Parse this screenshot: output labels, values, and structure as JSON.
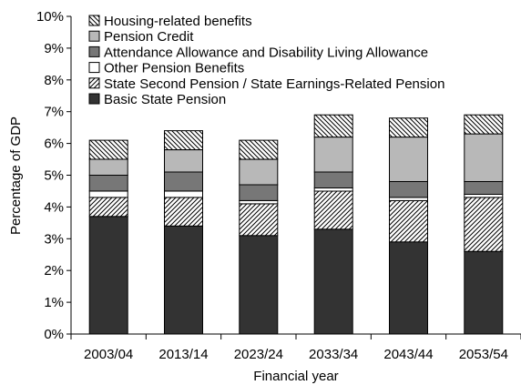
{
  "chart_data": {
    "type": "bar",
    "stacked": true,
    "xlabel": "Financial year",
    "ylabel": "Percentage of GDP",
    "ylim": [
      0,
      10
    ],
    "y_ticks": [
      "0%",
      "1%",
      "2%",
      "3%",
      "4%",
      "5%",
      "6%",
      "7%",
      "8%",
      "9%",
      "10%"
    ],
    "grid": false,
    "legend_position": "top-left",
    "categories": [
      "2003/04",
      "2013/14",
      "2023/24",
      "2033/34",
      "2043/44",
      "2053/54"
    ],
    "series": [
      {
        "name": "Basic State Pension",
        "values": [
          3.7,
          3.4,
          3.1,
          3.3,
          2.9,
          2.6
        ],
        "fill": "#333333",
        "pattern": "solid"
      },
      {
        "name": "State Second Pension / State Earnings-Related Pension",
        "values": [
          0.6,
          0.9,
          1.0,
          1.2,
          1.3,
          1.7
        ],
        "fill": "#ffffff",
        "pattern": "diagonal-up"
      },
      {
        "name": "Other Pension Benefits",
        "values": [
          0.2,
          0.2,
          0.1,
          0.1,
          0.1,
          0.1
        ],
        "fill": "#ffffff",
        "pattern": "solid"
      },
      {
        "name": "Attendance Allowance and Disability Living Allowance",
        "values": [
          0.5,
          0.6,
          0.5,
          0.5,
          0.5,
          0.4
        ],
        "fill": "#777777",
        "pattern": "solid"
      },
      {
        "name": "Pension Credit",
        "values": [
          0.5,
          0.7,
          0.8,
          1.1,
          1.4,
          1.5
        ],
        "fill": "#b8b8b8",
        "pattern": "solid"
      },
      {
        "name": "Housing-related benefits",
        "values": [
          0.6,
          0.6,
          0.6,
          0.7,
          0.6,
          0.6
        ],
        "fill": "#ffffff",
        "pattern": "diagonal-down"
      }
    ],
    "legend_order": [
      "Housing-related benefits",
      "Pension Credit",
      "Attendance Allowance and Disability Living Allowance",
      "Other Pension Benefits",
      "State Second Pension / State Earnings-Related Pension",
      "Basic State Pension"
    ]
  }
}
